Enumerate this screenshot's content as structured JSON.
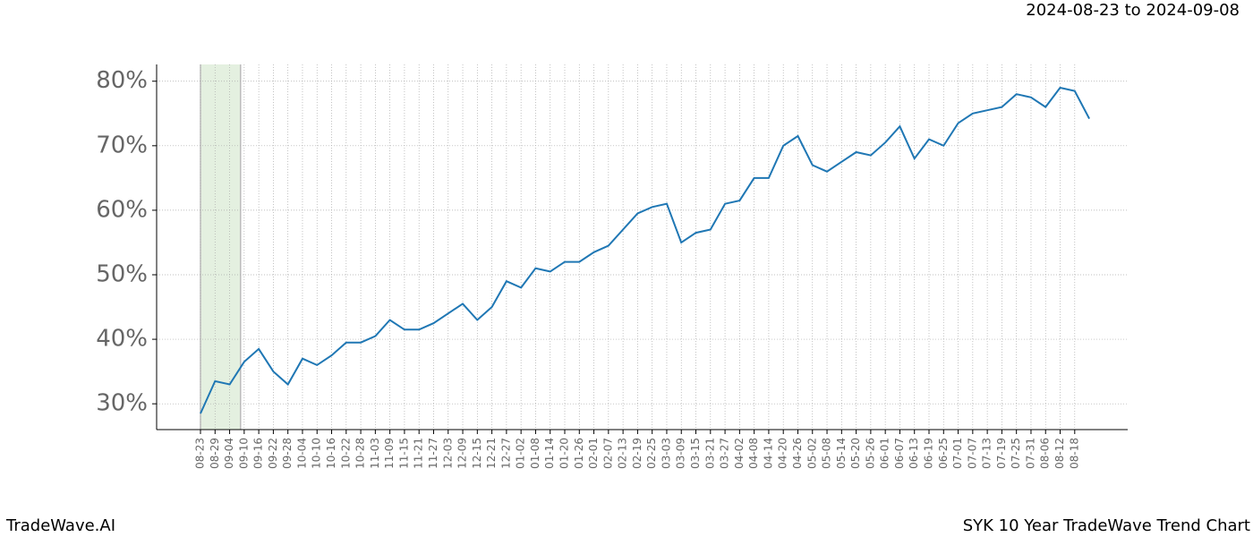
{
  "chart_data": {
    "type": "line",
    "subtitle": "2024-08-23 to 2024-09-08",
    "footer_left": "TradeWave.AI",
    "footer_right": "SYK 10 Year TradeWave Trend Chart",
    "categories": [
      "08-23",
      "08-29",
      "09-04",
      "09-10",
      "09-16",
      "09-22",
      "09-28",
      "10-04",
      "10-10",
      "10-16",
      "10-22",
      "10-28",
      "11-03",
      "11-09",
      "11-15",
      "11-21",
      "11-27",
      "12-03",
      "12-09",
      "12-15",
      "12-21",
      "12-27",
      "01-02",
      "01-08",
      "01-14",
      "01-20",
      "01-26",
      "02-01",
      "02-07",
      "02-13",
      "02-19",
      "02-25",
      "03-03",
      "03-09",
      "03-15",
      "03-21",
      "03-27",
      "04-02",
      "04-08",
      "04-14",
      "04-20",
      "04-26",
      "05-02",
      "05-08",
      "05-14",
      "05-20",
      "05-26",
      "06-01",
      "06-07",
      "06-13",
      "06-19",
      "06-25",
      "07-01",
      "07-07",
      "07-13",
      "07-19",
      "07-25",
      "07-31",
      "08-06",
      "08-12",
      "08-18",
      null
    ],
    "series": [
      {
        "color": "#1f77b4",
        "values": [
          28.5,
          33.5,
          33,
          36.5,
          38.5,
          35,
          33,
          37,
          36,
          37.5,
          39.5,
          39.5,
          40.5,
          43,
          41.5,
          41.5,
          42.5,
          44,
          45.5,
          43,
          45,
          49,
          48,
          51,
          50.5,
          52,
          52,
          53.5,
          54.5,
          57,
          59.5,
          60.5,
          61,
          55,
          56.5,
          57,
          61,
          61.5,
          65,
          65,
          70,
          71.5,
          67,
          66,
          67.5,
          69,
          68.5,
          70.5,
          73,
          68,
          71,
          70,
          73.5,
          75,
          75.5,
          76,
          78,
          77.5,
          76,
          79,
          78.5,
          74.2
        ]
      }
    ],
    "shaded_range": [
      0,
      2.75
    ],
    "shade_color": "#d9ead3",
    "ylim": [
      26,
      82.6
    ],
    "yticks": [
      {
        "value": 30,
        "label": "30%"
      },
      {
        "value": 40,
        "label": "40%"
      },
      {
        "value": 50,
        "label": "50%"
      },
      {
        "value": 60,
        "label": "60%"
      },
      {
        "value": 70,
        "label": "70%"
      },
      {
        "value": 80,
        "label": "80%"
      }
    ],
    "grid": true
  }
}
